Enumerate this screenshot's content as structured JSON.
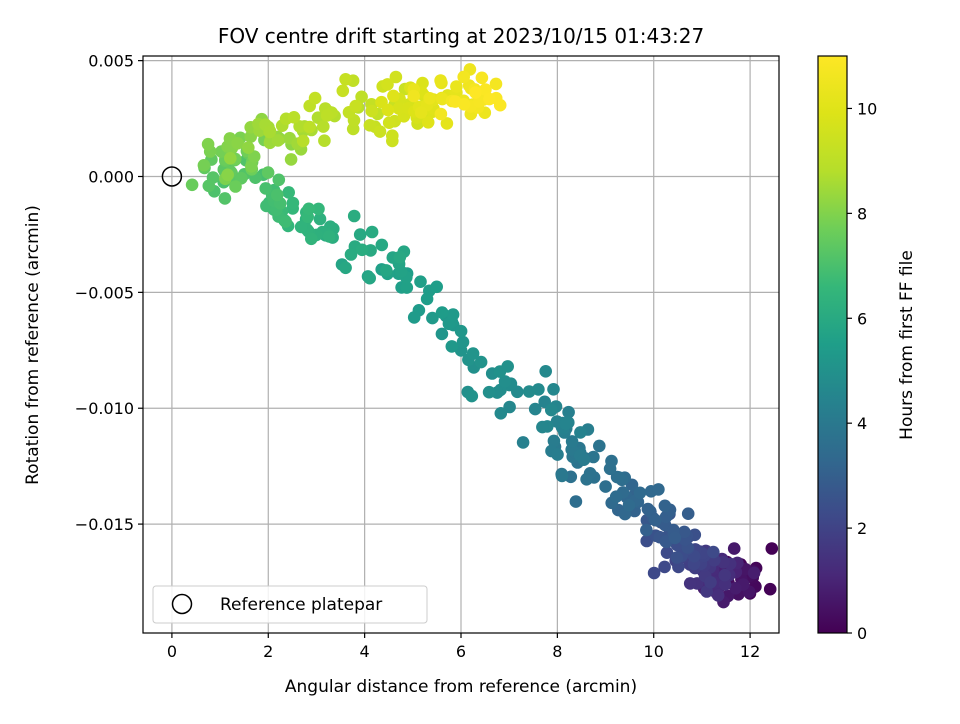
{
  "chart_data": {
    "type": "scatter",
    "title": "FOV centre drift starting at 2023/10/15 01:43:27",
    "xlabel": "Angular distance from reference (arcmin)",
    "ylabel": "Rotation from reference (arcmin)",
    "xlim": [
      -0.6,
      12.6
    ],
    "ylim": [
      -0.0197,
      0.0052
    ],
    "xticks": [
      0,
      2,
      4,
      6,
      8,
      10,
      12
    ],
    "xtick_labels": [
      "0",
      "2",
      "4",
      "6",
      "8",
      "10",
      "12"
    ],
    "yticks": [
      0.005,
      0.0,
      -0.005,
      -0.01,
      -0.015
    ],
    "ytick_labels": [
      "0.005",
      "0.000",
      "−0.005",
      "−0.010",
      "−0.015"
    ],
    "grid": true,
    "colormap": "viridis",
    "colorbar": {
      "label": "Hours from first FF file",
      "range": [
        0,
        11
      ],
      "ticks": [
        0,
        2,
        4,
        6,
        8,
        10
      ],
      "tick_labels": [
        "0",
        "2",
        "4",
        "6",
        "8",
        "10"
      ]
    },
    "legend": {
      "placement": "lower-left",
      "entries": [
        {
          "label": "Reference platepar",
          "marker": "open-circle"
        }
      ]
    },
    "reference_point": {
      "x": 0.0,
      "y": 0.0
    },
    "trend_anchors": [
      {
        "hours": 0.0,
        "x": 11.7,
        "y": -0.0173
      },
      {
        "hours": 1.0,
        "x": 11.4,
        "y": -0.0175
      },
      {
        "hours": 2.0,
        "x": 10.8,
        "y": -0.0165
      },
      {
        "hours": 3.0,
        "x": 10.1,
        "y": -0.0147
      },
      {
        "hours": 4.0,
        "x": 8.3,
        "y": -0.0119
      },
      {
        "hours": 4.6,
        "x": 7.6,
        "y": -0.01
      },
      {
        "hours": 5.0,
        "x": 6.5,
        "y": -0.0083
      },
      {
        "hours": 5.4,
        "x": 5.4,
        "y": -0.0052
      },
      {
        "hours": 5.8,
        "x": 4.3,
        "y": -0.0037
      },
      {
        "hours": 6.2,
        "x": 3.3,
        "y": -0.0023
      },
      {
        "hours": 6.7,
        "x": 2.3,
        "y": -0.001
      },
      {
        "hours": 7.3,
        "x": 1.3,
        "y": -0.0001
      },
      {
        "hours": 7.8,
        "x": 1.1,
        "y": 0.0008
      },
      {
        "hours": 8.3,
        "x": 1.9,
        "y": 0.0017
      },
      {
        "hours": 8.9,
        "x": 3.2,
        "y": 0.0023
      },
      {
        "hours": 9.5,
        "x": 4.5,
        "y": 0.0029
      },
      {
        "hours": 10.0,
        "x": 5.3,
        "y": 0.003
      },
      {
        "hours": 10.5,
        "x": 6.0,
        "y": 0.0033
      },
      {
        "hours": 11.0,
        "x": 6.6,
        "y": 0.0038
      }
    ],
    "sample_count": 480
  }
}
